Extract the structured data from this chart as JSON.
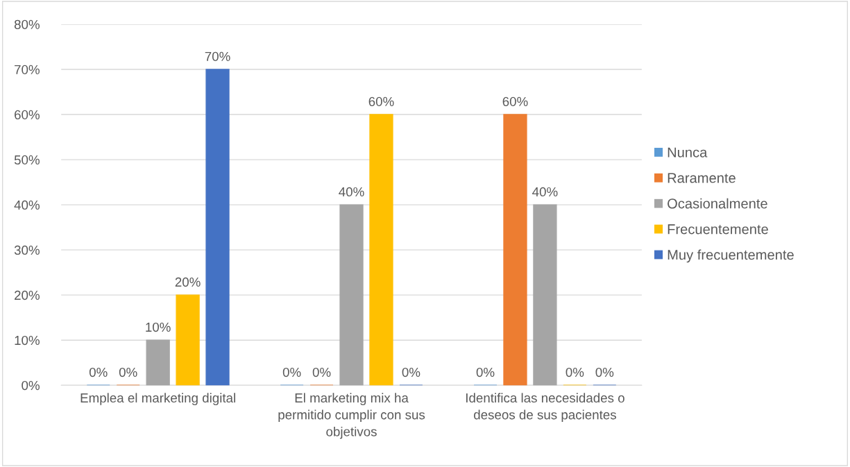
{
  "chart_data": {
    "type": "bar",
    "categories": [
      "Emplea el marketing digital",
      "El marketing mix ha permitido cumplir con sus objetivos",
      "Identifica las necesidades o deseos de sus pacientes"
    ],
    "series": [
      {
        "name": "Nunca",
        "color": "#5b9bd5",
        "values": [
          0,
          0,
          0
        ],
        "value_labels": [
          "0%",
          "0%",
          "0%"
        ]
      },
      {
        "name": "Raramente",
        "color": "#ed7d31",
        "values": [
          0,
          0,
          60
        ],
        "value_labels": [
          "0%",
          "0%",
          "60%"
        ]
      },
      {
        "name": "Ocasionalmente",
        "color": "#a5a5a5",
        "values": [
          10,
          40,
          40
        ],
        "value_labels": [
          "10%",
          "40%",
          "40%"
        ]
      },
      {
        "name": "Frecuentemente",
        "color": "#ffc000",
        "values": [
          20,
          60,
          0
        ],
        "value_labels": [
          "20%",
          "60%",
          "0%"
        ]
      },
      {
        "name": "Muy frecuentemente",
        "color": "#4472c4",
        "values": [
          70,
          0,
          0
        ],
        "value_labels": [
          "70%",
          "0%",
          "0%"
        ]
      }
    ],
    "ylim": [
      0,
      80
    ],
    "yticks": [
      {
        "value": 0,
        "label": "0%"
      },
      {
        "value": 10,
        "label": "10%"
      },
      {
        "value": 20,
        "label": "20%"
      },
      {
        "value": 30,
        "label": "30%"
      },
      {
        "value": 40,
        "label": "40%"
      },
      {
        "value": 50,
        "label": "50%"
      },
      {
        "value": 60,
        "label": "60%"
      },
      {
        "value": 70,
        "label": "70%"
      },
      {
        "value": 80,
        "label": "80%"
      }
    ],
    "grid": "y",
    "legend": "right"
  }
}
